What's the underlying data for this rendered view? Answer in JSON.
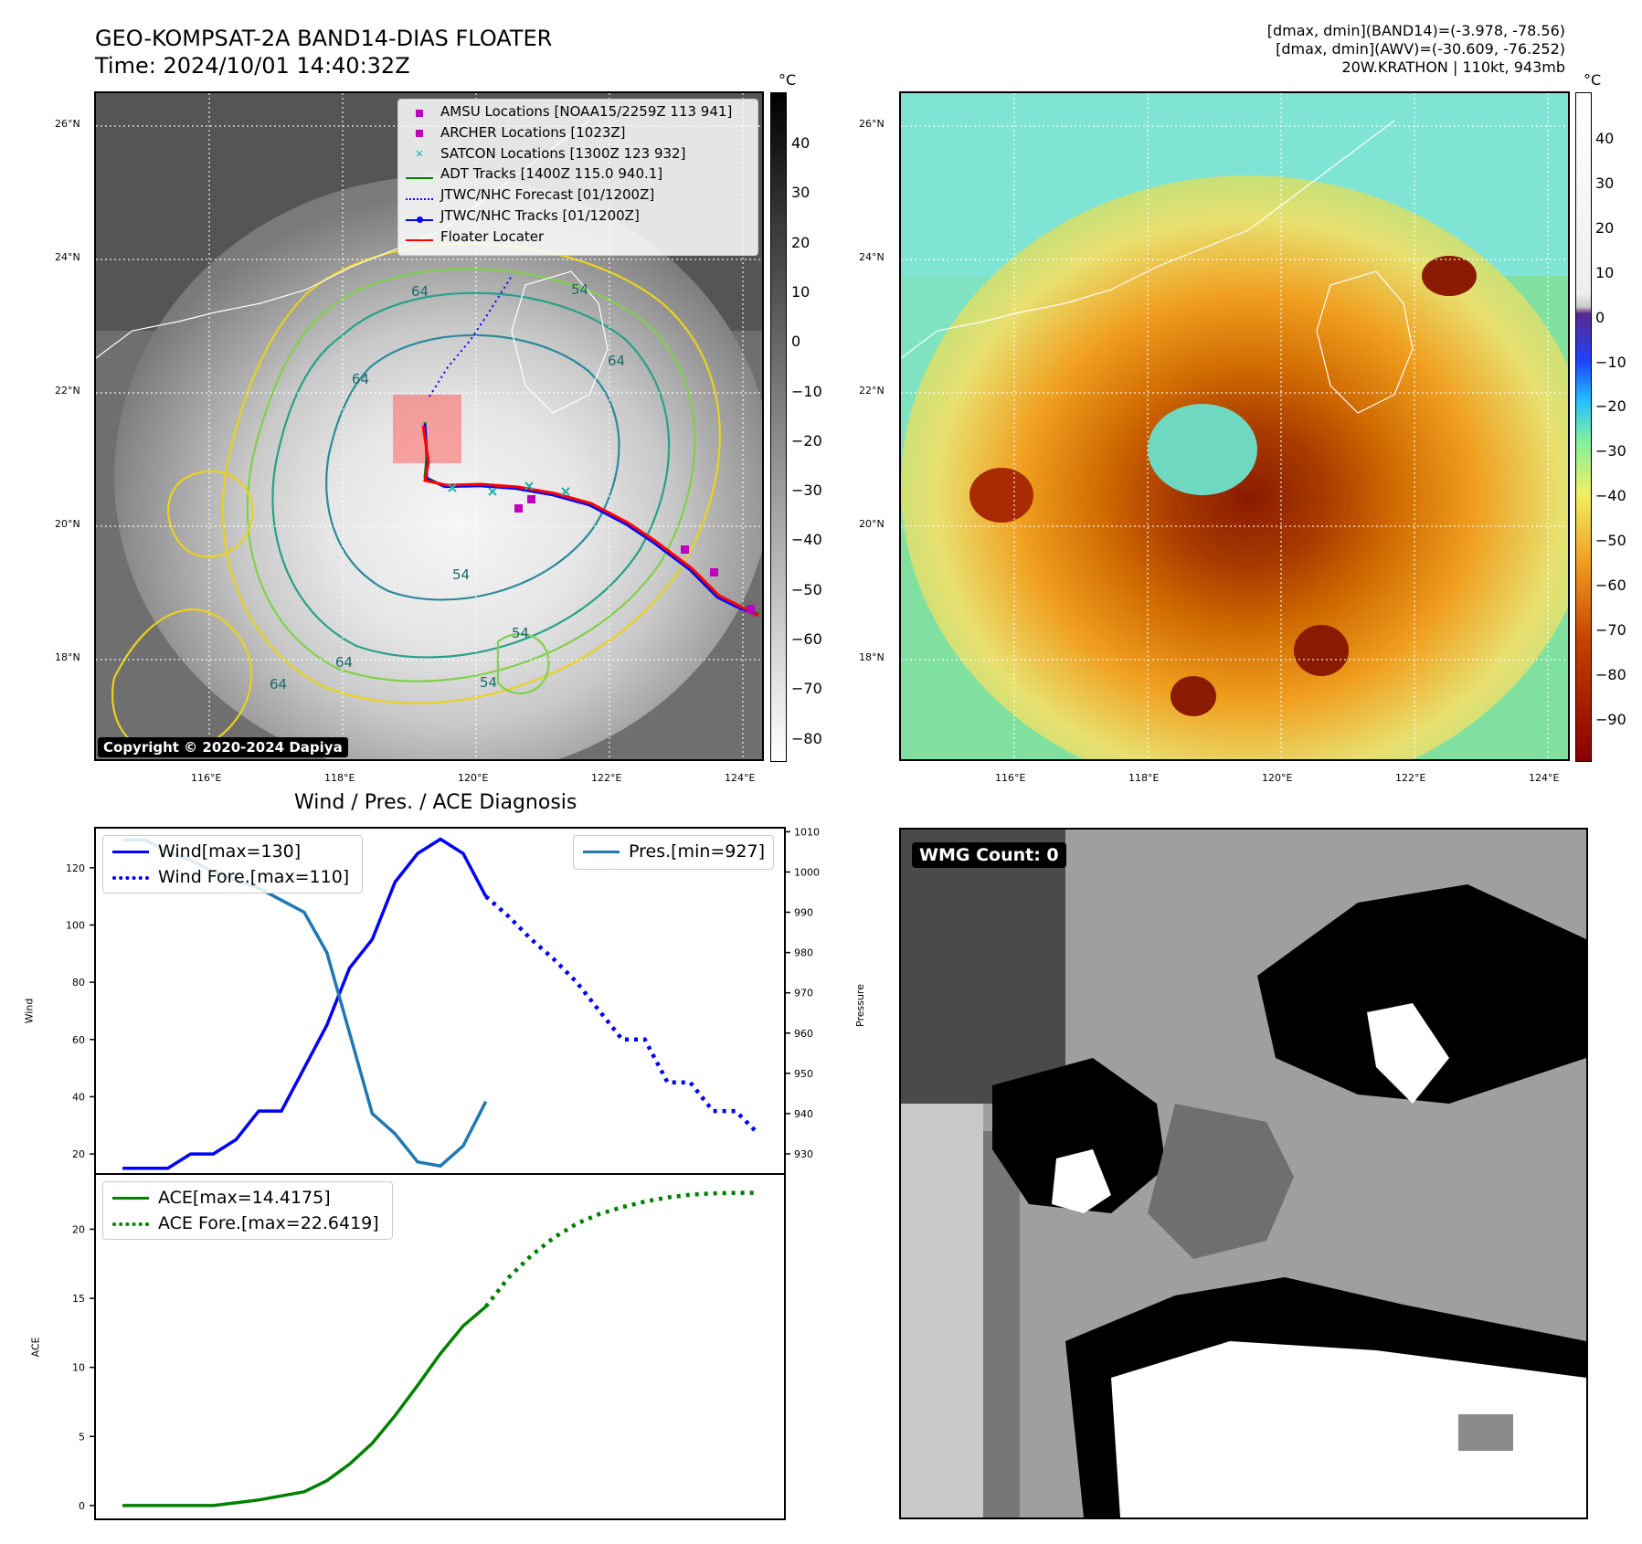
{
  "header": {
    "title_line1": "GEO-KOMPSAT-2A BAND14-DIAS FLOATER",
    "title_line2": "Time: 2024/10/01 14:40:32Z",
    "info_line1": "[dmax, dmin](BAND14)=(-3.978, -78.56)",
    "info_line2": "[dmax, dmin](AWV)=(-30.609, -76.252)",
    "info_line3": "20W.KRATHON | 110kt, 943mb"
  },
  "map": {
    "lat_labels": [
      "26°N",
      "24°N",
      "22°N",
      "20°N",
      "18°N"
    ],
    "lon_labels": [
      "116°E",
      "118°E",
      "120°E",
      "122°E",
      "124°E"
    ],
    "copyright": "Copyright © 2020-2024 Dapiya",
    "contour_labels": [
      "64",
      "54",
      "64",
      "64",
      "54",
      "64",
      "54",
      "54",
      "64"
    ],
    "legend": [
      {
        "label": "AMSU Locations [NOAA15/2259Z 113 941]",
        "color": "#c000c0",
        "kind": "square"
      },
      {
        "label": "ARCHER Locations [1023Z]",
        "color": "#c000c0",
        "kind": "square"
      },
      {
        "label": "SATCON Locations [1300Z 123 932]",
        "color": "#20b0b0",
        "kind": "x"
      },
      {
        "label": "ADT Tracks [1400Z 115.0 940.1]",
        "color": "#008000",
        "kind": "line"
      },
      {
        "label": "JTWC/NHC Forecast [01/1200Z]",
        "color": "#0000ff",
        "kind": "dotted"
      },
      {
        "label": "JTWC/NHC Tracks [01/1200Z]",
        "color": "#0000ff",
        "kind": "linedot"
      },
      {
        "label": "Floater Locater",
        "color": "#ff0000",
        "kind": "line"
      }
    ]
  },
  "colorbars": {
    "unit": "°C",
    "gray_ticks": [
      "40",
      "30",
      "20",
      "10",
      "0",
      "−10",
      "−20",
      "−30",
      "−40",
      "−50",
      "−60",
      "−70",
      "−80"
    ],
    "color_ticks": [
      "40",
      "30",
      "20",
      "10",
      "0",
      "−10",
      "−20",
      "−30",
      "−40",
      "−50",
      "−60",
      "−70",
      "−80",
      "−90"
    ]
  },
  "wmg": {
    "label": "WMG Count: 0"
  },
  "chart_data": [
    {
      "type": "line",
      "title": "Wind / Pres. / ACE Diagnosis",
      "ylabel": "Wind",
      "ylim": [
        13,
        134
      ],
      "yticks": [
        20,
        40,
        60,
        80,
        100,
        120
      ],
      "series": [
        {
          "name": "Wind[max=130]",
          "color": "#0000ff",
          "style": "solid",
          "x": [
            0,
            1,
            2,
            3,
            4,
            5,
            6,
            7,
            8,
            9,
            10,
            11,
            12,
            13,
            14,
            15,
            16
          ],
          "values": [
            15,
            15,
            15,
            20,
            20,
            25,
            35,
            35,
            50,
            65,
            85,
            95,
            115,
            125,
            130,
            125,
            110
          ]
        },
        {
          "name": "Wind Fore.[max=110]",
          "color": "#0000ff",
          "style": "dotted",
          "x": [
            16,
            17,
            18,
            19,
            20,
            21,
            22,
            23,
            24,
            25,
            26,
            27,
            28
          ],
          "values": [
            110,
            103,
            95,
            88,
            80,
            70,
            60,
            60,
            45,
            45,
            35,
            35,
            27
          ]
        }
      ],
      "y2label": "Pressure",
      "y2lim": [
        925,
        1011
      ],
      "y2ticks": [
        930,
        940,
        950,
        960,
        970,
        980,
        990,
        1000,
        1010
      ],
      "series2": [
        {
          "name": "Pres.[min=927]",
          "color": "#1f77b4",
          "style": "solid",
          "x": [
            0,
            1,
            2,
            3,
            4,
            5,
            6,
            7,
            8,
            9,
            10,
            11,
            12,
            13,
            14,
            15,
            16
          ],
          "values": [
            1008,
            1008,
            1005,
            1003,
            1000,
            998,
            996,
            993,
            990,
            980,
            960,
            940,
            935,
            928,
            927,
            932,
            943
          ]
        }
      ],
      "xlim": [
        0,
        28
      ]
    },
    {
      "type": "line",
      "ylabel": "ACE",
      "ylim": [
        -1,
        24
      ],
      "yticks": [
        0,
        5,
        10,
        15,
        20
      ],
      "series": [
        {
          "name": "ACE[max=14.4175]",
          "color": "#008000",
          "style": "solid",
          "x": [
            0,
            2,
            4,
            6,
            8,
            9,
            10,
            11,
            12,
            13,
            14,
            15,
            16
          ],
          "values": [
            0,
            0,
            0,
            0.4,
            1.0,
            1.8,
            3.0,
            4.5,
            6.5,
            8.7,
            11,
            13,
            14.4
          ]
        },
        {
          "name": "ACE Fore.[max=22.6419]",
          "color": "#008000",
          "style": "dotted",
          "x": [
            16,
            17,
            18,
            19,
            20,
            21,
            22,
            23,
            24,
            25,
            26,
            27,
            28
          ],
          "values": [
            14.4,
            16.5,
            18.1,
            19.4,
            20.4,
            21.1,
            21.6,
            22.0,
            22.3,
            22.5,
            22.6,
            22.64,
            22.64
          ]
        }
      ],
      "xlim": [
        0,
        28
      ]
    }
  ]
}
